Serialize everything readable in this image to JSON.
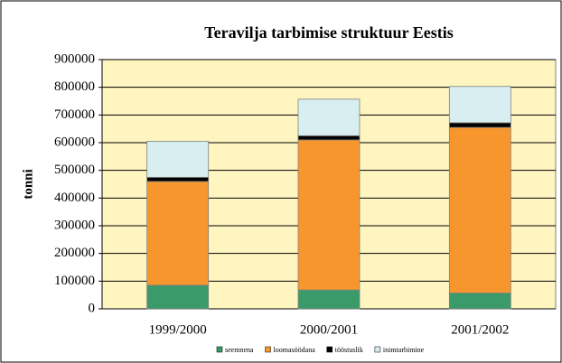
{
  "chart_data": {
    "type": "stacked_bar",
    "title": "Teravilja tarbimise struktuur Eestis",
    "ylabel": "tonni",
    "categories": [
      "1999/2000",
      "2000/2001",
      "2001/2002"
    ],
    "series": [
      {
        "name": "seemnena",
        "color": "#3a9a6a",
        "values": [
          85000,
          68000,
          57000
        ]
      },
      {
        "name": "loomasöödana",
        "color": "#f7962c",
        "values": [
          375000,
          542000,
          598000
        ]
      },
      {
        "name": "tööstuslik",
        "color": "#000000",
        "values": [
          15000,
          15000,
          17000
        ]
      },
      {
        "name": "inimtarbimine",
        "color": "#d8eef0",
        "values": [
          130000,
          132000,
          131000
        ]
      }
    ],
    "ylim": [
      0,
      900000
    ],
    "yticks": [
      0,
      100000,
      200000,
      300000,
      400000,
      500000,
      600000,
      700000,
      800000,
      900000
    ],
    "grid": true,
    "legend": "bottom"
  }
}
